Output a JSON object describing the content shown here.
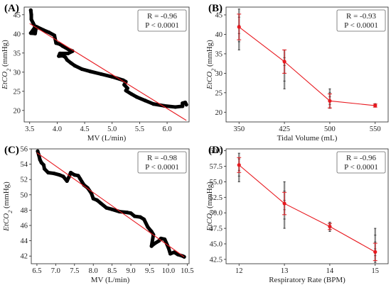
{
  "figure": {
    "panels": [
      {
        "id": "A",
        "label": "(A)",
        "stat_r": "R = -0.96",
        "stat_p": "P < 0.0001"
      },
      {
        "id": "B",
        "label": "(B)",
        "stat_r": "R = -0.93",
        "stat_p": "P < 0.0001"
      },
      {
        "id": "C",
        "label": "(C)",
        "stat_r": "R = -0.98",
        "stat_p": "P < 0.0001"
      },
      {
        "id": "D",
        "label": "(D)",
        "stat_r": "R = -0.96",
        "stat_p": "P < 0.0001"
      }
    ]
  },
  "colors": {
    "scatter": "#000000",
    "fit": "#e8191f",
    "mean": "#e8191f",
    "raw": "#666666"
  },
  "chart_data": [
    {
      "type": "scatter",
      "panel": "A",
      "xlabel": "MV (L/min)",
      "ylabel": "EtCO2 (mmHg)",
      "xlim": [
        3.4,
        6.4
      ],
      "ylim": [
        17,
        47
      ],
      "xticks": [
        "3.5",
        "4.0",
        "4.5",
        "5.0",
        "5.5",
        "6.0"
      ],
      "yticks": [
        "20",
        "25",
        "30",
        "35",
        "40",
        "45"
      ],
      "trace": [
        [
          3.52,
          46.2
        ],
        [
          3.53,
          45.0
        ],
        [
          3.53,
          43.8
        ],
        [
          3.56,
          42.9
        ],
        [
          3.6,
          41.8
        ],
        [
          3.52,
          40.2
        ],
        [
          3.6,
          40.1
        ],
        [
          3.62,
          41.9
        ],
        [
          3.75,
          41.0
        ],
        [
          3.85,
          40.4
        ],
        [
          3.95,
          39.6
        ],
        [
          3.98,
          37.6
        ],
        [
          4.05,
          37.3
        ],
        [
          4.1,
          36.8
        ],
        [
          4.2,
          36.0
        ],
        [
          4.28,
          35.5
        ],
        [
          4.2,
          34.9
        ],
        [
          4.05,
          34.9
        ],
        [
          4.03,
          34.2
        ],
        [
          4.1,
          34.3
        ],
        [
          4.15,
          33.9
        ],
        [
          4.18,
          33.2
        ],
        [
          4.25,
          32.4
        ],
        [
          4.32,
          31.7
        ],
        [
          4.45,
          30.8
        ],
        [
          4.6,
          30.2
        ],
        [
          4.8,
          29.5
        ],
        [
          5.0,
          28.8
        ],
        [
          5.2,
          27.9
        ],
        [
          5.25,
          27.5
        ],
        [
          5.22,
          26.7
        ],
        [
          5.28,
          25.8
        ],
        [
          5.25,
          25.2
        ],
        [
          5.35,
          24.3
        ],
        [
          5.45,
          23.5
        ],
        [
          5.6,
          22.6
        ],
        [
          5.75,
          21.7
        ],
        [
          5.95,
          21.2
        ],
        [
          6.15,
          20.9
        ],
        [
          6.28,
          21.1
        ],
        [
          6.28,
          21.9
        ],
        [
          6.33,
          22.1
        ],
        [
          6.35,
          21.5
        ]
      ],
      "fit": {
        "x": [
          3.5,
          6.35
        ],
        "y": [
          42.7,
          17.4
        ]
      }
    },
    {
      "type": "line",
      "panel": "B",
      "xlabel": "Tidal Volume (mL)",
      "ylabel": "EtCO2 (mmHg)",
      "x": [
        350,
        425,
        500,
        550
      ],
      "xticks": [
        "350",
        "425",
        "500",
        "550"
      ],
      "ylim": [
        17.5,
        47
      ],
      "yticks": [
        "20",
        "25",
        "30",
        "35",
        "40",
        "45"
      ],
      "series": [
        {
          "mean": [
            41.9,
            33.0,
            22.9,
            21.7
          ],
          "sd": [
            3.3,
            3.0,
            1.8,
            0.4
          ],
          "range": [
            [
              36.0,
              46.5
            ],
            [
              26.0,
              36.0
            ],
            [
              21.0,
              26.0
            ],
            [
              21.3,
              22.2
            ]
          ]
        }
      ]
    },
    {
      "type": "scatter",
      "panel": "C",
      "xlabel": "MV (L/min)",
      "ylabel": "EtCO2 (mmHg)",
      "xlim": [
        6.35,
        10.55
      ],
      "ylim": [
        41,
        56
      ],
      "xticks": [
        "6.5",
        "7.0",
        "7.5",
        "8.0",
        "8.5",
        "9.0",
        "9.5",
        "10.0",
        "10.5"
      ],
      "yticks": [
        "42",
        "44",
        "46",
        "48",
        "50",
        "52",
        "54",
        "56"
      ],
      "trace": [
        [
          6.52,
          55.7
        ],
        [
          6.55,
          55.2
        ],
        [
          6.58,
          54.6
        ],
        [
          6.62,
          54.2
        ],
        [
          6.68,
          53.9
        ],
        [
          6.7,
          53.4
        ],
        [
          6.8,
          52.9
        ],
        [
          6.95,
          52.8
        ],
        [
          7.1,
          52.6
        ],
        [
          7.2,
          52.4
        ],
        [
          7.3,
          51.8
        ],
        [
          7.35,
          52.3
        ],
        [
          7.4,
          52.9
        ],
        [
          7.5,
          52.6
        ],
        [
          7.6,
          52.5
        ],
        [
          7.65,
          52.1
        ],
        [
          7.75,
          51.3
        ],
        [
          7.85,
          50.9
        ],
        [
          7.95,
          50.2
        ],
        [
          8.0,
          49.5
        ],
        [
          8.1,
          49.3
        ],
        [
          8.2,
          48.9
        ],
        [
          8.35,
          48.3
        ],
        [
          8.5,
          48.1
        ],
        [
          8.7,
          47.8
        ],
        [
          8.9,
          47.7
        ],
        [
          9.0,
          47.6
        ],
        [
          9.1,
          47.2
        ],
        [
          9.25,
          47.1
        ],
        [
          9.35,
          46.8
        ],
        [
          9.45,
          45.8
        ],
        [
          9.55,
          45.2
        ],
        [
          9.6,
          44.8
        ],
        [
          9.55,
          43.3
        ],
        [
          9.62,
          43.6
        ],
        [
          9.75,
          44.0
        ],
        [
          9.8,
          44.3
        ],
        [
          9.9,
          44.2
        ],
        [
          10.0,
          43.1
        ],
        [
          10.05,
          42.3
        ],
        [
          10.15,
          42.5
        ],
        [
          10.25,
          42.2
        ],
        [
          10.38,
          42.0
        ],
        [
          10.42,
          41.9
        ]
      ],
      "fit": {
        "x": [
          6.5,
          10.42
        ],
        "y": [
          55.5,
          41.9
        ]
      }
    },
    {
      "type": "line",
      "panel": "D",
      "xlabel": "Respiratory Rate (BPM)",
      "ylabel": "EtCO2 (mmHg)",
      "x": [
        12,
        13,
        14,
        15
      ],
      "xticks": [
        "12",
        "13",
        "14",
        "15"
      ],
      "ylim": [
        41.8,
        60.3
      ],
      "yticks": [
        "42.5",
        "45.0",
        "47.5",
        "50.0",
        "52.5",
        "55.0",
        "57.5",
        "60.0"
      ],
      "series": [
        {
          "mean": [
            57.7,
            51.5,
            47.8,
            43.7
          ],
          "sd": [
            1.2,
            1.8,
            0.5,
            1.4
          ],
          "range": [
            [
              55.0,
              59.6
            ],
            [
              47.5,
              55.0
            ],
            [
              47.0,
              48.5
            ],
            [
              42.0,
              47.5
            ]
          ]
        }
      ]
    }
  ]
}
